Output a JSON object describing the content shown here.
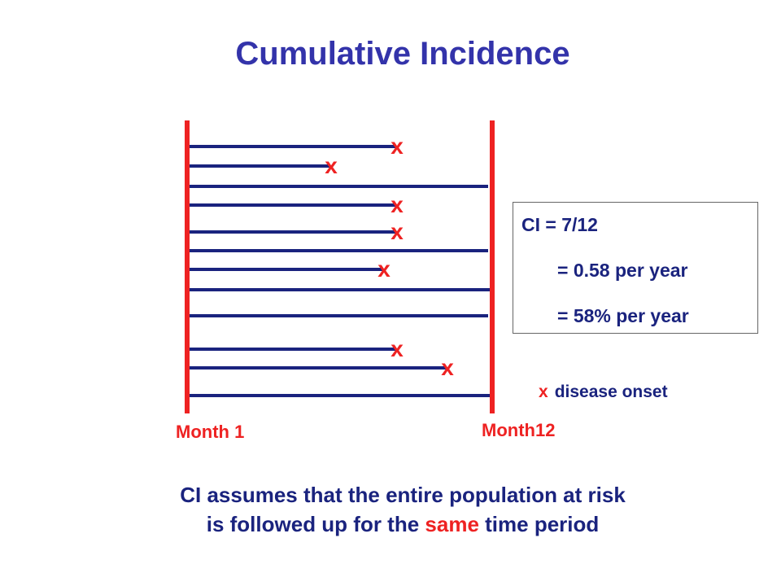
{
  "title": "Cumulative Incidence",
  "colors": {
    "title": "#3333aa",
    "line": "#1a237e",
    "marker": "#ee2222",
    "boundary": "#ee2222"
  },
  "follow_up": {
    "start_label": "Month 1",
    "end_label": "Month12",
    "marker_symbol": "x",
    "subjects": [
      {
        "id": 1,
        "onset": true
      },
      {
        "id": 2,
        "onset": true
      },
      {
        "id": 3,
        "onset": false
      },
      {
        "id": 4,
        "onset": true
      },
      {
        "id": 5,
        "onset": true
      },
      {
        "id": 6,
        "onset": false
      },
      {
        "id": 7,
        "onset": true
      },
      {
        "id": 8,
        "onset": false
      },
      {
        "id": 9,
        "onset": false
      },
      {
        "id": 10,
        "onset": true
      },
      {
        "id": 11,
        "onset": true
      },
      {
        "id": 12,
        "onset": false
      }
    ]
  },
  "ci_box": {
    "line1": "CI = 7/12",
    "line2": "= 0.58 per year",
    "line3": "= 58% per year"
  },
  "legend": {
    "symbol": "x",
    "label": "disease onset"
  },
  "caption": {
    "line1": "CI assumes that the entire population at risk",
    "line2_before": "is followed up for the ",
    "line2_highlight": "same",
    "line2_after": " time period"
  }
}
